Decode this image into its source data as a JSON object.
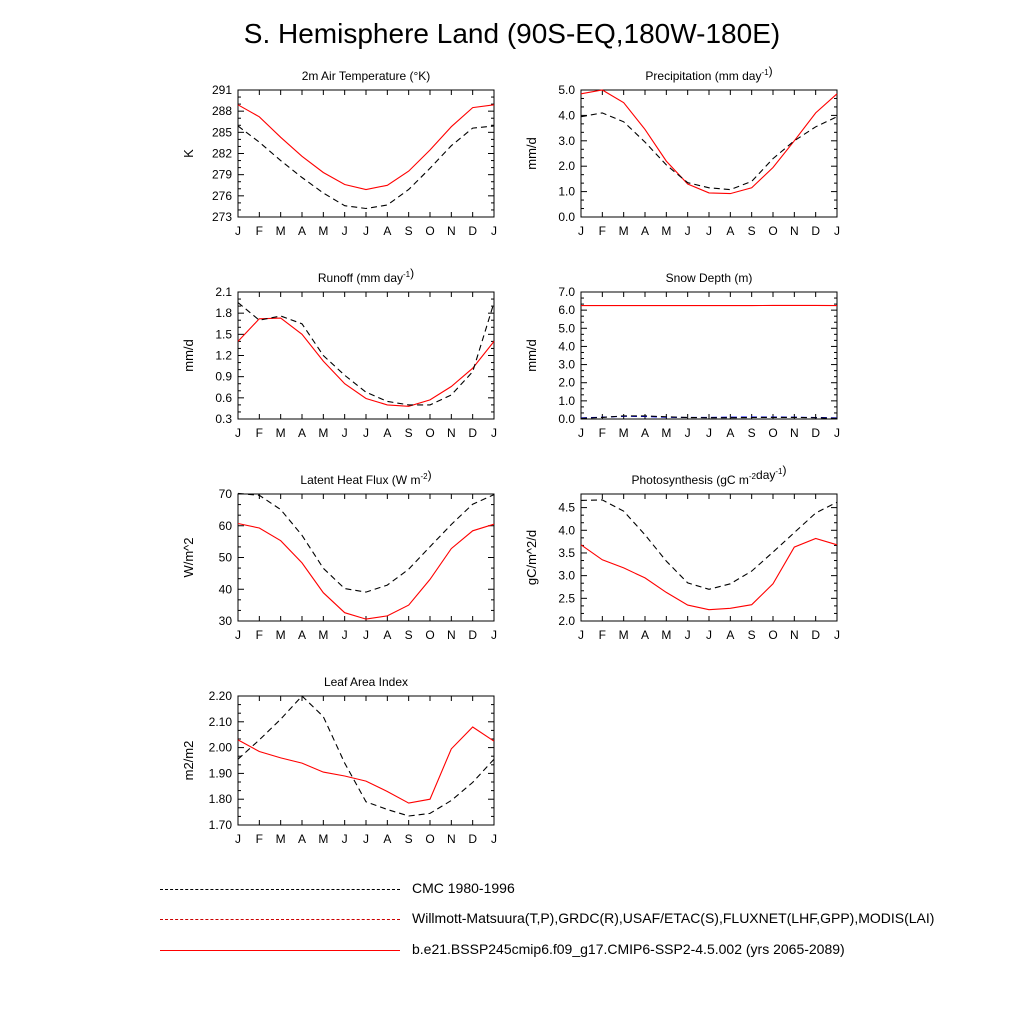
{
  "title": "S. Hemisphere Land (90S-EQ,180W-180E)",
  "months": [
    "J",
    "F",
    "M",
    "A",
    "M",
    "J",
    "J",
    "A",
    "S",
    "O",
    "N",
    "D",
    "J"
  ],
  "colors": {
    "model": "#ff0000",
    "obs_primary": "#000000",
    "obs_secondary": "#0000ff"
  },
  "legend": [
    {
      "label": "CMC 1980-1996",
      "style": "dash-black"
    },
    {
      "label": "Willmott-Matsuura(T,P),GRDC(R),USAF/ETAC(S),FLUXNET(LHF,GPP),MODIS(LAI)",
      "style": "dash-red-blue"
    },
    {
      "label": "b.e21.BSSP245cmip6.f09_g17.CMIP6-SSP2-4.5.002 (yrs 2065-2089)",
      "style": "solid-red"
    }
  ],
  "chart_data": [
    {
      "type": "line",
      "title": "2m Air Temperature (°K)",
      "ylabel": "K",
      "ylim": [
        273,
        291
      ],
      "yticks": [
        273,
        276,
        279,
        282,
        285,
        288,
        291
      ],
      "ytick_labels": [
        "273",
        "276",
        "279",
        "282",
        "285",
        "288",
        "291"
      ],
      "series": [
        {
          "role": "model",
          "values": [
            288.9,
            287.2,
            284.3,
            281.6,
            279.3,
            277.6,
            276.9,
            277.5,
            279.5,
            282.5,
            285.8,
            288.5,
            288.9
          ]
        },
        {
          "role": "obs",
          "values": [
            285.9,
            283.6,
            281.0,
            278.6,
            276.4,
            274.6,
            274.2,
            274.7,
            276.9,
            279.9,
            283.1,
            285.6,
            285.9
          ]
        }
      ]
    },
    {
      "type": "line",
      "title": "Precipitation (mm day-1)",
      "ylabel": "mm/d",
      "ylim": [
        0.0,
        5.0
      ],
      "yticks": [
        0.0,
        1.0,
        2.0,
        3.0,
        4.0,
        5.0
      ],
      "ytick_labels": [
        "0.0",
        "1.0",
        "2.0",
        "3.0",
        "4.0",
        "5.0"
      ],
      "series": [
        {
          "role": "model",
          "values": [
            4.85,
            5.0,
            4.5,
            3.45,
            2.2,
            1.3,
            0.95,
            0.92,
            1.15,
            1.95,
            3.0,
            4.1,
            4.85
          ]
        },
        {
          "role": "obs",
          "values": [
            3.95,
            4.1,
            3.75,
            2.95,
            2.05,
            1.35,
            1.15,
            1.08,
            1.4,
            2.3,
            3.0,
            3.55,
            3.95
          ]
        }
      ]
    },
    {
      "type": "line",
      "title": "Runoff (mm day-1)",
      "ylabel": "mm/d",
      "ylim": [
        0.3,
        2.1
      ],
      "yticks": [
        0.3,
        0.6,
        0.9,
        1.2,
        1.5,
        1.8,
        2.1
      ],
      "ytick_labels": [
        "0.3",
        "0.6",
        "0.9",
        "1.2",
        "1.5",
        "1.8",
        "2.1"
      ],
      "series": [
        {
          "role": "model",
          "values": [
            1.4,
            1.72,
            1.73,
            1.5,
            1.12,
            0.8,
            0.59,
            0.5,
            0.48,
            0.57,
            0.76,
            1.02,
            1.4
          ]
        },
        {
          "role": "obs",
          "values": [
            1.95,
            1.7,
            1.76,
            1.65,
            1.2,
            0.92,
            0.68,
            0.55,
            0.5,
            0.5,
            0.64,
            0.97,
            1.95
          ]
        }
      ]
    },
    {
      "type": "line",
      "title": "Snow Depth (m)",
      "ylabel": "mm/d",
      "ylim": [
        0.0,
        7.0
      ],
      "yticks": [
        0.0,
        1.0,
        2.0,
        3.0,
        4.0,
        5.0,
        6.0,
        7.0
      ],
      "ytick_labels": [
        "0.0",
        "1.0",
        "2.0",
        "3.0",
        "4.0",
        "5.0",
        "6.0",
        "7.0"
      ],
      "series": [
        {
          "role": "model",
          "values": [
            6.25,
            6.25,
            6.25,
            6.25,
            6.25,
            6.25,
            6.25,
            6.25,
            6.25,
            6.26,
            6.26,
            6.26,
            6.25
          ]
        },
        {
          "role": "obs2",
          "values": [
            0.06,
            0.1,
            0.15,
            0.14,
            0.1,
            0.08,
            0.09,
            0.1,
            0.11,
            0.11,
            0.1,
            0.08,
            0.06
          ]
        },
        {
          "role": "obs",
          "values": [
            0.04,
            0.09,
            0.17,
            0.17,
            0.12,
            0.08,
            0.07,
            0.07,
            0.08,
            0.09,
            0.09,
            0.07,
            0.04
          ]
        }
      ]
    },
    {
      "type": "line",
      "title": "Latent Heat Flux (W m-2)",
      "ylabel": "W/m^2",
      "ylim": [
        30,
        70
      ],
      "yticks": [
        30,
        40,
        50,
        60,
        70
      ],
      "ytick_labels": [
        "30",
        "40",
        "50",
        "60",
        "70"
      ],
      "series": [
        {
          "role": "model",
          "values": [
            60.7,
            59.3,
            55.3,
            48.3,
            38.9,
            32.6,
            30.6,
            31.6,
            35.0,
            43.1,
            52.8,
            58.4,
            60.5
          ]
        },
        {
          "role": "obs",
          "values": [
            70.2,
            69.6,
            65.1,
            57.0,
            46.6,
            40.2,
            39.1,
            41.3,
            46.3,
            53.4,
            60.4,
            66.8,
            69.8
          ]
        }
      ]
    },
    {
      "type": "line",
      "title": "Photosynthesis (gC m-2day-1)",
      "ylabel": "gC/m^2/d",
      "ylim": [
        2.0,
        4.8
      ],
      "yticks": [
        2.0,
        2.5,
        3.0,
        3.5,
        4.0,
        4.5
      ],
      "ytick_labels": [
        "2.0",
        "2.5",
        "3.0",
        "3.5",
        "4.0",
        "4.5"
      ],
      "series": [
        {
          "role": "model",
          "values": [
            3.68,
            3.35,
            3.17,
            2.95,
            2.63,
            2.35,
            2.25,
            2.28,
            2.36,
            2.82,
            3.63,
            3.82,
            3.68
          ]
        },
        {
          "role": "obs",
          "values": [
            4.66,
            4.67,
            4.42,
            3.9,
            3.32,
            2.84,
            2.7,
            2.82,
            3.1,
            3.52,
            3.95,
            4.38,
            4.62
          ]
        }
      ]
    },
    {
      "type": "line",
      "title": "Leaf Area Index",
      "ylabel": "m2/m2",
      "ylim": [
        1.7,
        2.2
      ],
      "yticks": [
        1.7,
        1.8,
        1.9,
        2.0,
        2.1,
        2.2
      ],
      "ytick_labels": [
        "1.70",
        "1.80",
        "1.90",
        "2.00",
        "2.10",
        "2.20"
      ],
      "series": [
        {
          "role": "model",
          "values": [
            2.03,
            1.985,
            1.96,
            1.94,
            1.905,
            1.89,
            1.87,
            1.83,
            1.785,
            1.8,
            1.995,
            2.08,
            2.025
          ]
        },
        {
          "role": "obs",
          "values": [
            1.955,
            2.03,
            2.11,
            2.2,
            2.12,
            1.94,
            1.79,
            1.76,
            1.735,
            1.745,
            1.795,
            1.865,
            1.955
          ]
        }
      ]
    }
  ]
}
